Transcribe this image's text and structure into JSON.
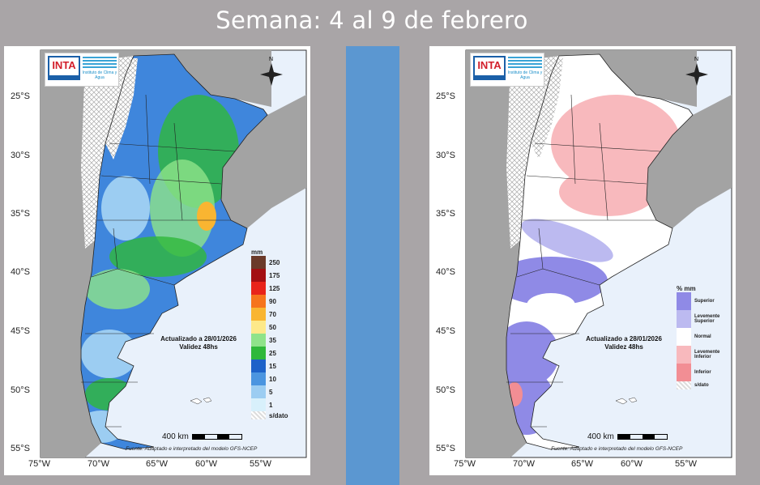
{
  "title": "Semana: 4 al 9 de febrero",
  "colors": {
    "background": "#a9a5a7",
    "divider_bar": "#5b97d1",
    "ocean": "#e9f1fb",
    "land_neighbor": "#a3a3a3"
  },
  "lat_labels": [
    "25°S",
    "30°S",
    "35°S",
    "40°S",
    "45°S",
    "50°S",
    "55°S"
  ],
  "lon_labels": [
    "75°W",
    "70°W",
    "65°W",
    "60°W",
    "55°W"
  ],
  "logo": {
    "inta": "INTA",
    "clima": "Instituto de Clima y Agua"
  },
  "compass": "N",
  "annotation": {
    "line1": "Actualizado a 28/01/2026",
    "line2": "Validez 48hs"
  },
  "scale_label": "400 km",
  "source": "Fuente: Adaptado e interpretado del modelo GFS-NCEP",
  "left_map": {
    "legend_title": "mm",
    "legend": [
      {
        "label": "250",
        "color": "#6b3a2a"
      },
      {
        "label": "175",
        "color": "#a30f12"
      },
      {
        "label": "125",
        "color": "#e8231a"
      },
      {
        "label": "90",
        "color": "#f6741c"
      },
      {
        "label": "70",
        "color": "#f9b531"
      },
      {
        "label": "50",
        "color": "#fde98a"
      },
      {
        "label": "35",
        "color": "#8fe38a"
      },
      {
        "label": "25",
        "color": "#2fb83a"
      },
      {
        "label": "15",
        "color": "#1d62c9"
      },
      {
        "label": "10",
        "color": "#4b95e0"
      },
      {
        "label": "5",
        "color": "#9ccdf2"
      },
      {
        "label": "1",
        "color": "#d8f0fb"
      },
      {
        "label": "s/dato",
        "color": "#e6e6e6"
      }
    ]
  },
  "right_map": {
    "legend_title": "% mm",
    "legend": [
      {
        "label": "Superior",
        "color": "#8f8ae6"
      },
      {
        "label": "Levemente Superior",
        "color": "#bcbaf0"
      },
      {
        "label": "Normal",
        "color": "#ffffff"
      },
      {
        "label": "Levemente Inferior",
        "color": "#f8b9bd"
      },
      {
        "label": "Inferior",
        "color": "#f28e94"
      },
      {
        "label": "s/dato",
        "color": "#e6e6e6"
      }
    ]
  }
}
